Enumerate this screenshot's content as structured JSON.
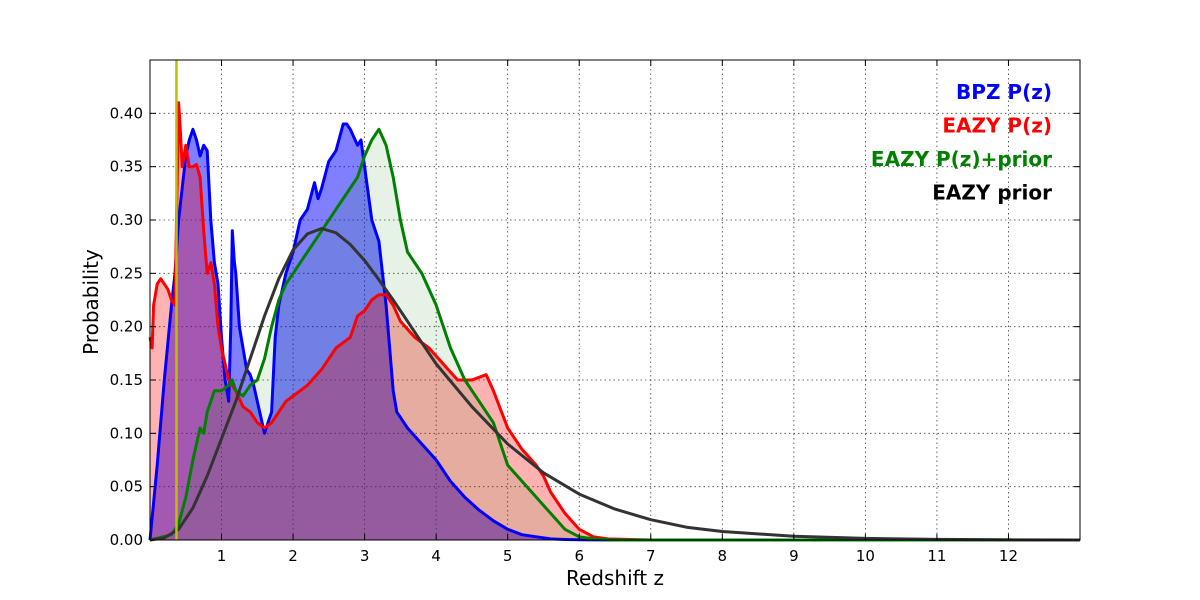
{
  "chart_data": {
    "type": "area",
    "title": "",
    "xlabel": "Redshift z",
    "ylabel": "Probability",
    "xlim": [
      0,
      13
    ],
    "ylim": [
      0,
      0.45
    ],
    "grid": true,
    "legend_position": "top-right",
    "x_ticks": [
      1,
      2,
      3,
      4,
      5,
      6,
      7,
      8,
      9,
      10,
      11,
      12
    ],
    "x_tick_labels": [
      "1",
      "2",
      "3",
      "4",
      "5",
      "6",
      "7",
      "8",
      "9",
      "10",
      "11",
      "12"
    ],
    "y_ticks": [
      0,
      0.05,
      0.1,
      0.15,
      0.2,
      0.25,
      0.3,
      0.35,
      0.4
    ],
    "y_tick_labels": [
      "0.00",
      "0.05",
      "0.10",
      "0.15",
      "0.20",
      "0.25",
      "0.30",
      "0.35",
      "0.40"
    ],
    "vertical_line": {
      "x": 0.37,
      "color": "#bfbf00"
    },
    "series": [
      {
        "name": "BPZ P(z)",
        "color": "#0000ff",
        "fill": "#0000ff",
        "fill_opacity": 0.5,
        "x": [
          0,
          0.1,
          0.2,
          0.3,
          0.35,
          0.4,
          0.45,
          0.5,
          0.55,
          0.6,
          0.65,
          0.7,
          0.75,
          0.8,
          0.85,
          0.9,
          0.95,
          1.0,
          1.05,
          1.1,
          1.13,
          1.15,
          1.18,
          1.2,
          1.25,
          1.3,
          1.35,
          1.4,
          1.45,
          1.5,
          1.55,
          1.6,
          1.65,
          1.7,
          1.75,
          1.8,
          1.9,
          2.0,
          2.1,
          2.2,
          2.3,
          2.35,
          2.4,
          2.5,
          2.6,
          2.7,
          2.75,
          2.8,
          2.9,
          2.95,
          3.0,
          3.1,
          3.2,
          3.3,
          3.4,
          3.45,
          3.5,
          3.6,
          3.8,
          4.0,
          4.2,
          4.4,
          4.6,
          4.8,
          5.0,
          5.2,
          5.4,
          5.6,
          5.8,
          6.0,
          6.5,
          7.0,
          13.0
        ],
        "y": [
          0.0,
          0.07,
          0.15,
          0.22,
          0.25,
          0.3,
          0.33,
          0.36,
          0.375,
          0.385,
          0.375,
          0.36,
          0.37,
          0.365,
          0.3,
          0.26,
          0.24,
          0.19,
          0.15,
          0.13,
          0.2,
          0.29,
          0.26,
          0.25,
          0.2,
          0.18,
          0.16,
          0.155,
          0.145,
          0.13,
          0.115,
          0.1,
          0.11,
          0.12,
          0.19,
          0.22,
          0.25,
          0.27,
          0.3,
          0.31,
          0.335,
          0.32,
          0.33,
          0.355,
          0.365,
          0.39,
          0.39,
          0.385,
          0.37,
          0.375,
          0.35,
          0.3,
          0.28,
          0.22,
          0.14,
          0.12,
          0.115,
          0.105,
          0.09,
          0.075,
          0.055,
          0.04,
          0.028,
          0.018,
          0.01,
          0.005,
          0.003,
          0.001,
          0.0005,
          0.0002,
          0.0,
          0.0,
          0.0
        ]
      },
      {
        "name": "EAZY P(z)",
        "color": "#ff0000",
        "fill": "#ff0000",
        "fill_opacity": 0.3,
        "x": [
          0,
          0.03,
          0.05,
          0.1,
          0.15,
          0.2,
          0.25,
          0.3,
          0.35,
          0.4,
          0.42,
          0.45,
          0.5,
          0.55,
          0.6,
          0.65,
          0.7,
          0.75,
          0.8,
          0.85,
          0.9,
          0.95,
          1.0,
          1.05,
          1.1,
          1.2,
          1.3,
          1.4,
          1.5,
          1.6,
          1.7,
          1.8,
          1.9,
          2.0,
          2.2,
          2.4,
          2.6,
          2.8,
          2.9,
          3.0,
          3.1,
          3.2,
          3.3,
          3.4,
          3.5,
          3.7,
          3.9,
          4.1,
          4.3,
          4.5,
          4.7,
          4.8,
          5.0,
          5.2,
          5.4,
          5.5,
          5.6,
          5.8,
          6.0,
          6.2,
          6.4,
          7.0,
          13.0
        ],
        "y": [
          0.19,
          0.18,
          0.22,
          0.24,
          0.245,
          0.24,
          0.235,
          0.225,
          0.22,
          0.41,
          0.39,
          0.35,
          0.37,
          0.35,
          0.35,
          0.352,
          0.34,
          0.29,
          0.25,
          0.26,
          0.24,
          0.2,
          0.18,
          0.165,
          0.15,
          0.14,
          0.125,
          0.12,
          0.11,
          0.105,
          0.11,
          0.12,
          0.13,
          0.135,
          0.145,
          0.16,
          0.18,
          0.19,
          0.21,
          0.215,
          0.225,
          0.23,
          0.23,
          0.22,
          0.205,
          0.19,
          0.18,
          0.165,
          0.15,
          0.15,
          0.155,
          0.14,
          0.105,
          0.085,
          0.07,
          0.06,
          0.045,
          0.025,
          0.01,
          0.003,
          0.001,
          0.0,
          0.0
        ]
      },
      {
        "name": "EAZY P(z)+prior",
        "color": "#008000",
        "fill": "#008000",
        "fill_opacity": 0.1,
        "x": [
          0,
          0.3,
          0.4,
          0.5,
          0.6,
          0.65,
          0.7,
          0.75,
          0.8,
          0.9,
          1.0,
          1.1,
          1.15,
          1.2,
          1.3,
          1.4,
          1.5,
          1.6,
          1.7,
          1.8,
          1.9,
          2.0,
          2.2,
          2.4,
          2.6,
          2.8,
          2.9,
          3.0,
          3.1,
          3.2,
          3.3,
          3.4,
          3.5,
          3.6,
          3.8,
          4.0,
          4.2,
          4.4,
          4.6,
          4.8,
          5.0,
          5.2,
          5.4,
          5.6,
          5.8,
          6.0,
          6.2,
          6.5,
          13.0
        ],
        "y": [
          0,
          0.005,
          0.015,
          0.04,
          0.075,
          0.09,
          0.105,
          0.1,
          0.12,
          0.14,
          0.14,
          0.145,
          0.15,
          0.14,
          0.135,
          0.145,
          0.15,
          0.17,
          0.2,
          0.225,
          0.24,
          0.25,
          0.27,
          0.29,
          0.31,
          0.33,
          0.34,
          0.36,
          0.375,
          0.385,
          0.37,
          0.34,
          0.3,
          0.27,
          0.25,
          0.22,
          0.18,
          0.15,
          0.13,
          0.11,
          0.07,
          0.055,
          0.04,
          0.025,
          0.01,
          0.003,
          0.001,
          0.0,
          0.0
        ]
      },
      {
        "name": "EAZY prior",
        "color": "#333333",
        "fill": "none",
        "fill_opacity": 0,
        "x": [
          0,
          0.2,
          0.4,
          0.6,
          0.8,
          1.0,
          1.2,
          1.4,
          1.6,
          1.8,
          2.0,
          2.2,
          2.4,
          2.6,
          2.8,
          3.0,
          3.2,
          3.4,
          3.6,
          3.8,
          4.0,
          4.5,
          5.0,
          5.5,
          6.0,
          6.5,
          7.0,
          7.5,
          8.0,
          9.0,
          10.0,
          11.0,
          12.0,
          13.0
        ],
        "y": [
          0,
          0.002,
          0.01,
          0.03,
          0.06,
          0.095,
          0.13,
          0.17,
          0.21,
          0.245,
          0.272,
          0.287,
          0.292,
          0.288,
          0.277,
          0.262,
          0.244,
          0.225,
          0.205,
          0.185,
          0.165,
          0.125,
          0.09,
          0.063,
          0.043,
          0.029,
          0.019,
          0.012,
          0.008,
          0.0035,
          0.0015,
          0.0006,
          0.0002,
          0.0
        ]
      }
    ],
    "legend_entries": [
      {
        "label": "BPZ P(z)",
        "color": "#0000ff"
      },
      {
        "label": "EAZY P(z)",
        "color": "#ff0000"
      },
      {
        "label": "EAZY P(z)+prior",
        "color": "#008000"
      },
      {
        "label": "EAZY prior",
        "color": "#000000"
      }
    ]
  }
}
